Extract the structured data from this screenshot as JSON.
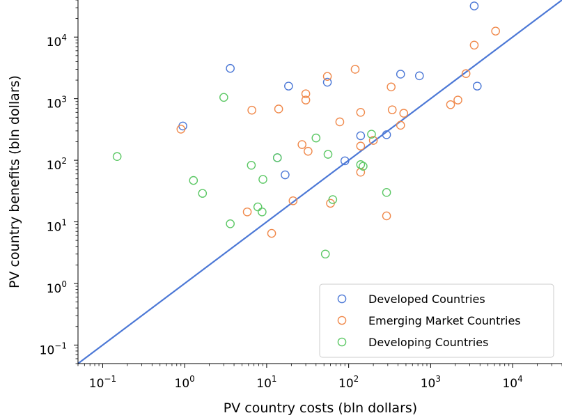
{
  "chart_data": {
    "type": "scatter",
    "xlabel": "PV country costs (bln dollars)",
    "ylabel": "PV country benefits (bln dollars)",
    "xscale": "log",
    "yscale": "log",
    "xlim": [
      0.05,
      40000
    ],
    "ylim": [
      0.05,
      40000
    ],
    "x_ticks": [
      {
        "value": 0.1,
        "base": "10",
        "exp": "−1"
      },
      {
        "value": 1,
        "base": "10",
        "exp": "0"
      },
      {
        "value": 10,
        "base": "10",
        "exp": "1"
      },
      {
        "value": 100,
        "base": "10",
        "exp": "2"
      },
      {
        "value": 1000,
        "base": "10",
        "exp": "3"
      },
      {
        "value": 10000,
        "base": "10",
        "exp": "4"
      }
    ],
    "y_ticks": [
      {
        "value": 0.1,
        "base": "10",
        "exp": "−1"
      },
      {
        "value": 1,
        "base": "10",
        "exp": "0"
      },
      {
        "value": 10,
        "base": "10",
        "exp": "1"
      },
      {
        "value": 100,
        "base": "10",
        "exp": "2"
      },
      {
        "value": 1000,
        "base": "10",
        "exp": "3"
      },
      {
        "value": 10000,
        "base": "10",
        "exp": "4"
      }
    ],
    "reference_line": {
      "type": "y=x",
      "color": "#4c78d6"
    },
    "grid": false,
    "legend": {
      "position": "lower-right"
    },
    "series": [
      {
        "name": "Developed Countries",
        "color": "#4c78d6",
        "points": [
          [
            0.95,
            360
          ],
          [
            3.6,
            3100
          ],
          [
            13.5,
            110
          ],
          [
            16.8,
            58
          ],
          [
            18.5,
            1600
          ],
          [
            55,
            1850
          ],
          [
            90,
            98
          ],
          [
            140,
            250
          ],
          [
            290,
            260
          ],
          [
            430,
            2500
          ],
          [
            730,
            2350
          ],
          [
            3400,
            32000
          ],
          [
            3700,
            1600
          ]
        ]
      },
      {
        "name": "Emerging Market Countries",
        "color": "#f0894b",
        "points": [
          [
            0.9,
            320
          ],
          [
            5.8,
            14.5
          ],
          [
            6.6,
            650
          ],
          [
            11.5,
            6.5
          ],
          [
            14,
            680
          ],
          [
            21,
            22
          ],
          [
            27,
            180
          ],
          [
            30,
            1200
          ],
          [
            30,
            950
          ],
          [
            32,
            140
          ],
          [
            55,
            2300
          ],
          [
            60,
            20
          ],
          [
            78,
            420
          ],
          [
            120,
            3000
          ],
          [
            140,
            600
          ],
          [
            140,
            170
          ],
          [
            140,
            64
          ],
          [
            200,
            210
          ],
          [
            290,
            12.5
          ],
          [
            330,
            1550
          ],
          [
            340,
            660
          ],
          [
            430,
            370
          ],
          [
            470,
            580
          ],
          [
            1750,
            800
          ],
          [
            2150,
            950
          ],
          [
            2700,
            2550
          ],
          [
            3400,
            7400
          ],
          [
            6200,
            12500
          ]
        ]
      },
      {
        "name": "Developing Countries",
        "color": "#5cc865",
        "points": [
          [
            0.15,
            115
          ],
          [
            1.28,
            47
          ],
          [
            1.65,
            29
          ],
          [
            3.0,
            1050
          ],
          [
            3.6,
            9.3
          ],
          [
            6.5,
            83
          ],
          [
            7.8,
            17.5
          ],
          [
            8.8,
            14.5
          ],
          [
            9.0,
            49
          ],
          [
            13.5,
            110
          ],
          [
            40,
            230
          ],
          [
            52,
            3.0
          ],
          [
            56,
            125
          ],
          [
            64,
            23
          ],
          [
            140,
            85
          ],
          [
            150,
            80
          ],
          [
            190,
            265
          ],
          [
            290,
            30
          ]
        ]
      }
    ]
  }
}
